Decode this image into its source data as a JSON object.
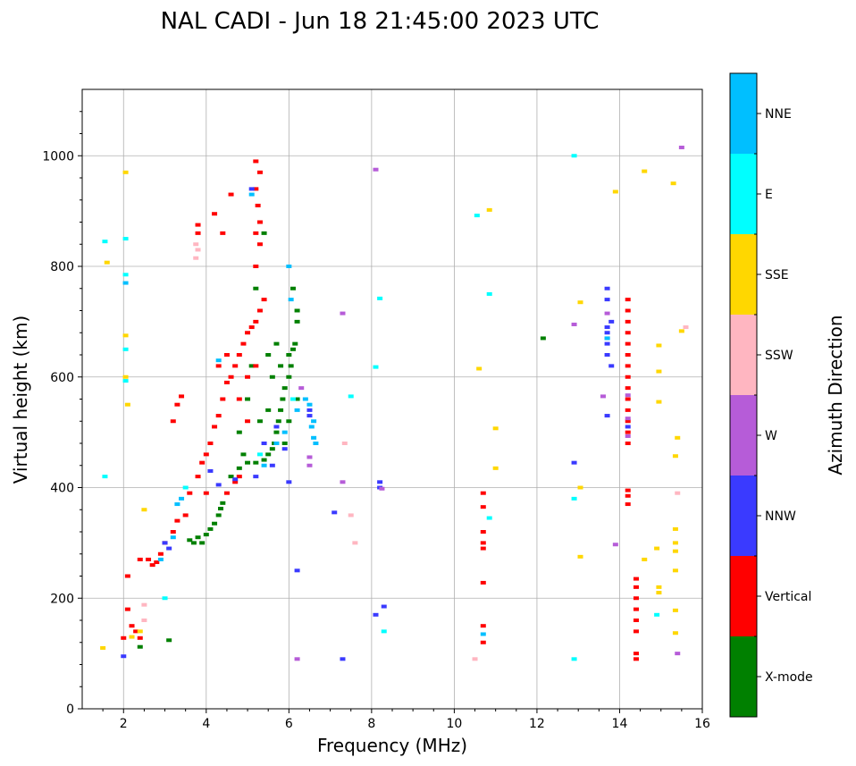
{
  "chart_data": {
    "type": "scatter",
    "title": "NAL CADI - Jun 18 21:45:00 2023 UTC",
    "xlabel": "Frequency (MHz)",
    "ylabel": "Virtual height (km)",
    "xlim": [
      1,
      16
    ],
    "ylim": [
      0,
      1120
    ],
    "xticks": [
      2,
      4,
      6,
      8,
      10,
      12,
      14,
      16
    ],
    "yticks": [
      0,
      200,
      400,
      600,
      800,
      1000
    ],
    "grid": true,
    "colorbar": {
      "label": "Azimuth Direction",
      "categories": [
        {
          "name": "X-mode",
          "color": "#008000"
        },
        {
          "name": "Vertical",
          "color": "#ff0000"
        },
        {
          "name": "NNW",
          "color": "#3a3aff"
        },
        {
          "name": "W",
          "color": "#b65cd8"
        },
        {
          "name": "SSW",
          "color": "#ffb6c1"
        },
        {
          "name": "SSE",
          "color": "#ffd700"
        },
        {
          "name": "E",
          "color": "#00ffff"
        },
        {
          "name": "NNE",
          "color": "#00bfff"
        }
      ]
    },
    "series": [
      {
        "name": "X-mode",
        "points": [
          [
            3.1,
            124
          ],
          [
            3.6,
            305
          ],
          [
            3.7,
            300
          ],
          [
            3.8,
            310
          ],
          [
            3.9,
            300
          ],
          [
            4.0,
            315
          ],
          [
            4.1,
            325
          ],
          [
            4.2,
            335
          ],
          [
            4.3,
            350
          ],
          [
            4.35,
            362
          ],
          [
            4.4,
            372
          ],
          [
            4.6,
            420
          ],
          [
            4.8,
            435
          ],
          [
            5.0,
            445
          ],
          [
            5.2,
            445
          ],
          [
            5.4,
            450
          ],
          [
            5.5,
            460
          ],
          [
            5.6,
            470
          ],
          [
            5.65,
            480
          ],
          [
            5.7,
            500
          ],
          [
            5.75,
            520
          ],
          [
            5.8,
            540
          ],
          [
            5.85,
            560
          ],
          [
            5.9,
            580
          ],
          [
            6.0,
            600
          ],
          [
            6.05,
            620
          ],
          [
            6.1,
            650
          ],
          [
            6.15,
            660
          ],
          [
            6.2,
            700
          ],
          [
            6.2,
            720
          ],
          [
            6.1,
            760
          ],
          [
            5.4,
            860
          ],
          [
            5.2,
            760
          ],
          [
            5.9,
            480
          ],
          [
            5.8,
            620
          ],
          [
            6.0,
            640
          ],
          [
            5.7,
            660
          ],
          [
            5.5,
            540
          ],
          [
            5.3,
            520
          ],
          [
            5.6,
            600
          ],
          [
            4.8,
            500
          ],
          [
            5.0,
            560
          ],
          [
            4.9,
            460
          ],
          [
            2.4,
            112
          ],
          [
            12.15,
            670
          ],
          [
            6.0,
            520
          ],
          [
            5.5,
            640
          ],
          [
            6.2,
            560
          ],
          [
            5.1,
            620
          ]
        ]
      },
      {
        "name": "Vertical",
        "points": [
          [
            2.1,
            240
          ],
          [
            2.4,
            270
          ],
          [
            2.6,
            270
          ],
          [
            2.7,
            260
          ],
          [
            2.8,
            265
          ],
          [
            2.9,
            280
          ],
          [
            3.0,
            300
          ],
          [
            3.2,
            320
          ],
          [
            3.3,
            340
          ],
          [
            3.5,
            350
          ],
          [
            3.2,
            520
          ],
          [
            3.3,
            550
          ],
          [
            3.4,
            565
          ],
          [
            3.6,
            390
          ],
          [
            3.8,
            420
          ],
          [
            3.9,
            445
          ],
          [
            4.0,
            460
          ],
          [
            4.1,
            480
          ],
          [
            4.2,
            510
          ],
          [
            4.3,
            530
          ],
          [
            4.4,
            560
          ],
          [
            4.5,
            590
          ],
          [
            4.6,
            600
          ],
          [
            4.7,
            620
          ],
          [
            4.8,
            640
          ],
          [
            4.9,
            660
          ],
          [
            5.0,
            680
          ],
          [
            5.1,
            690
          ],
          [
            5.2,
            700
          ],
          [
            5.3,
            720
          ],
          [
            5.4,
            740
          ],
          [
            5.2,
            800
          ],
          [
            5.3,
            840
          ],
          [
            5.2,
            860
          ],
          [
            5.3,
            880
          ],
          [
            5.25,
            910
          ],
          [
            5.2,
            940
          ],
          [
            5.3,
            970
          ],
          [
            5.2,
            990
          ],
          [
            4.5,
            390
          ],
          [
            4.7,
            410
          ],
          [
            4.8,
            420
          ],
          [
            4.2,
            895
          ],
          [
            4.6,
            930
          ],
          [
            4.4,
            860
          ],
          [
            3.8,
            860
          ],
          [
            3.8,
            875
          ],
          [
            5.0,
            600
          ],
          [
            5.2,
            620
          ],
          [
            5.0,
            520
          ],
          [
            4.3,
            620
          ],
          [
            4.5,
            640
          ],
          [
            4.0,
            390
          ],
          [
            4.8,
            560
          ],
          [
            10.7,
            390
          ],
          [
            10.7,
            365
          ],
          [
            10.7,
            320
          ],
          [
            10.7,
            300
          ],
          [
            10.7,
            290
          ],
          [
            10.7,
            228
          ],
          [
            10.7,
            150
          ],
          [
            10.7,
            120
          ],
          [
            14.2,
            740
          ],
          [
            14.2,
            720
          ],
          [
            14.2,
            700
          ],
          [
            14.2,
            680
          ],
          [
            14.2,
            660
          ],
          [
            14.2,
            640
          ],
          [
            14.2,
            620
          ],
          [
            14.2,
            600
          ],
          [
            14.2,
            580
          ],
          [
            14.2,
            560
          ],
          [
            14.2,
            540
          ],
          [
            14.2,
            520
          ],
          [
            14.2,
            500
          ],
          [
            14.2,
            480
          ],
          [
            14.2,
            395
          ],
          [
            14.2,
            385
          ],
          [
            14.2,
            370
          ],
          [
            14.4,
            235
          ],
          [
            14.4,
            220
          ],
          [
            14.4,
            200
          ],
          [
            14.4,
            180
          ],
          [
            14.4,
            160
          ],
          [
            14.4,
            140
          ],
          [
            14.4,
            100
          ],
          [
            14.4,
            90
          ],
          [
            2.1,
            180
          ],
          [
            2.2,
            150
          ],
          [
            2.3,
            140
          ],
          [
            2.0,
            128
          ],
          [
            2.4,
            128
          ]
        ]
      },
      {
        "name": "NNW",
        "points": [
          [
            2.0,
            95
          ],
          [
            3.0,
            300
          ],
          [
            3.1,
            290
          ],
          [
            4.3,
            405
          ],
          [
            4.7,
            415
          ],
          [
            5.2,
            420
          ],
          [
            5.6,
            440
          ],
          [
            5.9,
            470
          ],
          [
            6.0,
            410
          ],
          [
            6.2,
            250
          ],
          [
            6.5,
            530
          ],
          [
            6.5,
            540
          ],
          [
            7.1,
            355
          ],
          [
            7.3,
            90
          ],
          [
            8.2,
            410
          ],
          [
            8.2,
            400
          ],
          [
            8.3,
            185
          ],
          [
            8.1,
            170
          ],
          [
            12.9,
            445
          ],
          [
            13.7,
            760
          ],
          [
            13.7,
            740
          ],
          [
            13.8,
            700
          ],
          [
            13.7,
            690
          ],
          [
            13.7,
            680
          ],
          [
            13.7,
            660
          ],
          [
            13.7,
            640
          ],
          [
            13.8,
            620
          ],
          [
            13.7,
            530
          ],
          [
            14.2,
            510
          ],
          [
            5.1,
            940
          ],
          [
            5.4,
            480
          ],
          [
            5.7,
            510
          ],
          [
            4.1,
            430
          ]
        ]
      },
      {
        "name": "W",
        "points": [
          [
            6.2,
            90
          ],
          [
            6.5,
            455
          ],
          [
            6.5,
            440
          ],
          [
            6.3,
            580
          ],
          [
            7.3,
            715
          ],
          [
            7.3,
            410
          ],
          [
            8.1,
            975
          ],
          [
            8.25,
            398
          ],
          [
            12.9,
            695
          ],
          [
            13.6,
            565
          ],
          [
            13.7,
            715
          ],
          [
            13.7,
            670
          ],
          [
            13.9,
            297
          ],
          [
            14.2,
            567
          ],
          [
            14.2,
            525
          ],
          [
            14.2,
            493
          ],
          [
            15.5,
            1015
          ],
          [
            15.4,
            100
          ]
        ]
      },
      {
        "name": "SSW",
        "points": [
          [
            3.75,
            840
          ],
          [
            3.75,
            815
          ],
          [
            3.8,
            830
          ],
          [
            2.5,
            160
          ],
          [
            2.5,
            188
          ],
          [
            7.6,
            300
          ],
          [
            7.5,
            350
          ],
          [
            7.35,
            480
          ],
          [
            10.5,
            90
          ],
          [
            15.4,
            390
          ],
          [
            15.6,
            690
          ]
        ]
      },
      {
        "name": "SSE",
        "points": [
          [
            1.5,
            110
          ],
          [
            1.6,
            807
          ],
          [
            2.05,
            970
          ],
          [
            2.05,
            675
          ],
          [
            2.05,
            600
          ],
          [
            2.1,
            550
          ],
          [
            2.5,
            360
          ],
          [
            2.4,
            140
          ],
          [
            2.2,
            130
          ],
          [
            10.6,
            615
          ],
          [
            10.85,
            902
          ],
          [
            11.0,
            507
          ],
          [
            11.0,
            435
          ],
          [
            13.05,
            735
          ],
          [
            13.05,
            400
          ],
          [
            13.05,
            275
          ],
          [
            13.9,
            935
          ],
          [
            14.6,
            972
          ],
          [
            14.6,
            270
          ],
          [
            14.9,
            290
          ],
          [
            14.95,
            657
          ],
          [
            14.95,
            610
          ],
          [
            14.95,
            555
          ],
          [
            14.95,
            220
          ],
          [
            14.95,
            210
          ],
          [
            15.3,
            950
          ],
          [
            15.4,
            490
          ],
          [
            15.35,
            457
          ],
          [
            15.35,
            325
          ],
          [
            15.35,
            300
          ],
          [
            15.35,
            285
          ],
          [
            15.35,
            250
          ],
          [
            15.35,
            178
          ],
          [
            15.35,
            137
          ],
          [
            15.5,
            683
          ]
        ]
      },
      {
        "name": "E",
        "points": [
          [
            1.55,
            845
          ],
          [
            1.55,
            420
          ],
          [
            2.05,
            850
          ],
          [
            2.05,
            785
          ],
          [
            2.05,
            650
          ],
          [
            2.05,
            593
          ],
          [
            3.0,
            200
          ],
          [
            3.5,
            400
          ],
          [
            7.5,
            565
          ],
          [
            8.2,
            742
          ],
          [
            8.1,
            618
          ],
          [
            8.3,
            140
          ],
          [
            10.55,
            892
          ],
          [
            10.85,
            750
          ],
          [
            10.85,
            345
          ],
          [
            12.9,
            1000
          ],
          [
            12.9,
            380
          ],
          [
            12.9,
            90
          ],
          [
            14.9,
            170
          ],
          [
            6.1,
            560
          ],
          [
            5.3,
            460
          ]
        ]
      },
      {
        "name": "NNE",
        "points": [
          [
            2.05,
            770
          ],
          [
            3.3,
            370
          ],
          [
            3.4,
            380
          ],
          [
            4.3,
            630
          ],
          [
            5.1,
            930
          ],
          [
            6.0,
            800
          ],
          [
            6.05,
            740
          ],
          [
            6.4,
            560
          ],
          [
            6.5,
            550
          ],
          [
            6.6,
            520
          ],
          [
            6.6,
            490
          ],
          [
            6.65,
            480
          ],
          [
            6.55,
            510
          ],
          [
            10.7,
            135
          ],
          [
            13.7,
            670
          ],
          [
            5.7,
            480
          ],
          [
            5.9,
            500
          ],
          [
            6.2,
            540
          ],
          [
            5.4,
            440
          ],
          [
            3.2,
            310
          ],
          [
            2.9,
            270
          ]
        ]
      }
    ]
  }
}
